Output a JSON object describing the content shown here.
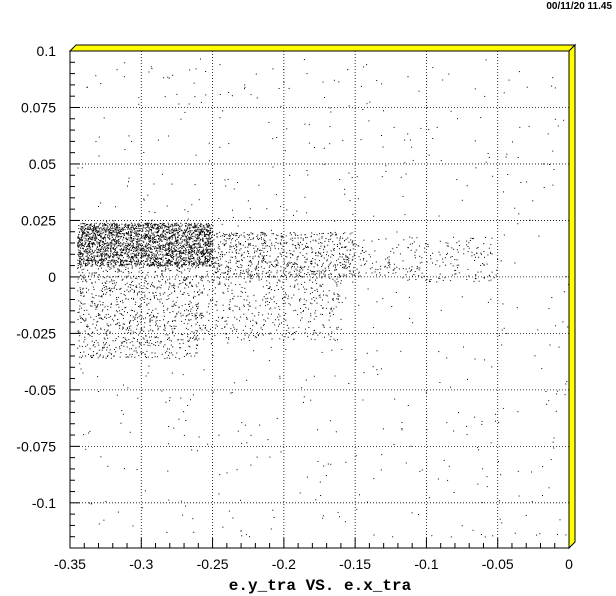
{
  "timestamp": "00/11/20  11.45",
  "chart_data": {
    "type": "scatter",
    "title": "",
    "xlabel": "e.y_tra VS. e.x_tra",
    "ylabel": "",
    "xlim": [
      -0.35,
      0
    ],
    "ylim": [
      -0.12,
      0.1
    ],
    "grid": true,
    "x_ticks": [
      -0.35,
      -0.3,
      -0.25,
      -0.2,
      -0.15,
      -0.1,
      -0.05,
      0
    ],
    "x_tick_labels": [
      "-0.35",
      "-0.3",
      "-0.25",
      "-0.2",
      "-0.15",
      "-0.1",
      "-0.05",
      "0"
    ],
    "y_ticks": [
      0.1,
      0.075,
      0.05,
      0.025,
      0,
      -0.025,
      -0.05,
      -0.075,
      -0.1
    ],
    "y_tick_labels": [
      "0.1",
      "0.075",
      "0.05",
      "0.025",
      "0",
      "-0.025",
      "-0.05",
      "-0.075",
      "-0.1"
    ],
    "marker_color": "#000000",
    "frame_color": "#ffff00",
    "clusters": [
      {
        "x_range": [
          -0.345,
          -0.25
        ],
        "y_range": [
          0.005,
          0.024
        ],
        "count": 2600
      },
      {
        "x_range": [
          -0.25,
          -0.15
        ],
        "y_range": [
          0.0,
          0.02
        ],
        "count": 700
      },
      {
        "x_range": [
          -0.15,
          -0.05
        ],
        "y_range": [
          -0.002,
          0.018
        ],
        "count": 220
      },
      {
        "x_range": [
          -0.345,
          -0.26
        ],
        "y_range": [
          -0.036,
          0.005
        ],
        "count": 900
      },
      {
        "x_range": [
          -0.26,
          -0.16
        ],
        "y_range": [
          -0.028,
          0.003
        ],
        "count": 450
      },
      {
        "x_range": [
          -0.345,
          -0.0
        ],
        "y_range": [
          -0.115,
          0.098
        ],
        "count": 650
      }
    ]
  }
}
